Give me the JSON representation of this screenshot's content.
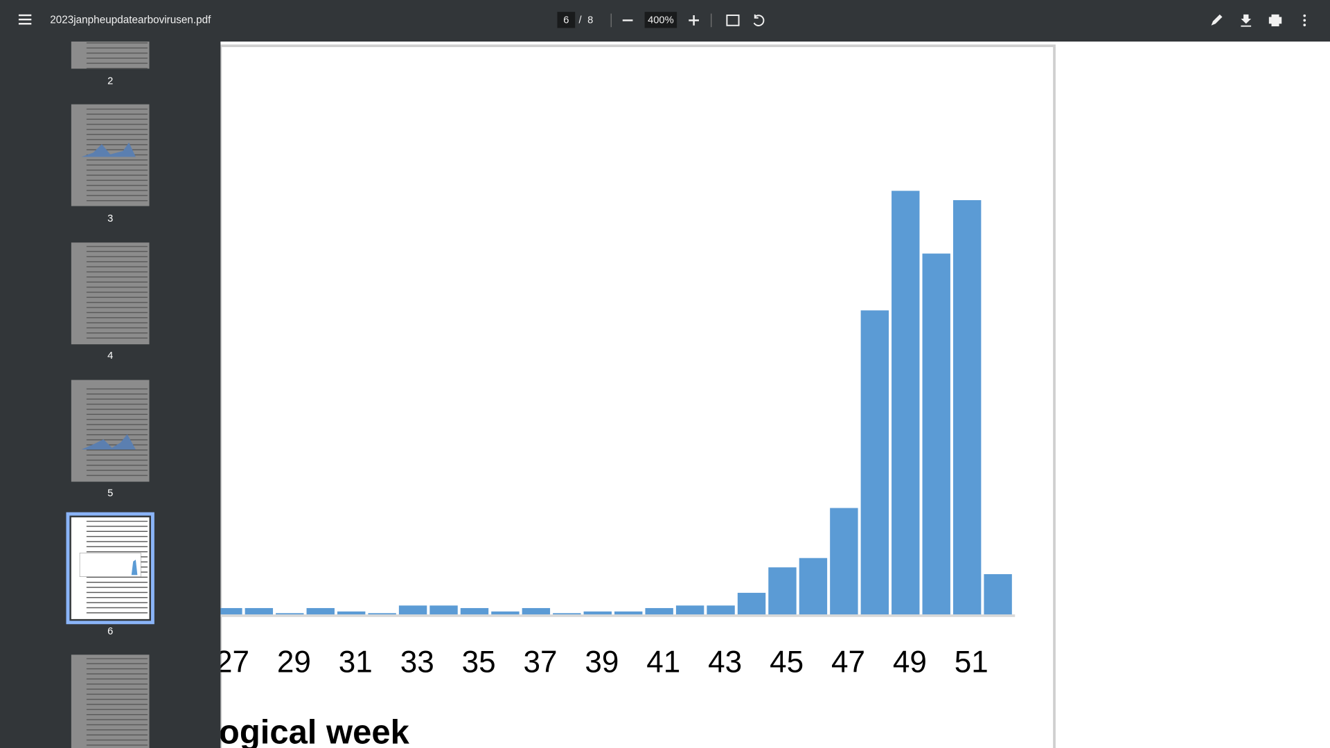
{
  "toolbar": {
    "file_name": "2023janpheupdatearbovirusen.pdf",
    "current_page": "6",
    "page_separator": "/",
    "page_count": "8",
    "zoom": "400%"
  },
  "thumbnails": [
    "2",
    "3",
    "4",
    "5",
    "6"
  ],
  "chart_data": {
    "type": "bar",
    "categories": [
      "27",
      null,
      "29",
      null,
      "31",
      null,
      "33",
      null,
      "35",
      null,
      "37",
      null,
      "39",
      null,
      "41",
      null,
      "43",
      null,
      "45",
      null,
      "47",
      null,
      "49",
      null,
      "51",
      null
    ],
    "values": [
      8,
      8,
      2,
      8,
      4,
      2,
      11,
      11,
      8,
      4,
      8,
      2,
      4,
      4,
      8,
      11,
      11,
      26,
      56,
      67,
      126,
      359,
      500,
      426,
      489,
      48
    ],
    "color": "#5b9bd5",
    "ylim": [
      0,
      500
    ],
    "x_label": "ogical week"
  }
}
